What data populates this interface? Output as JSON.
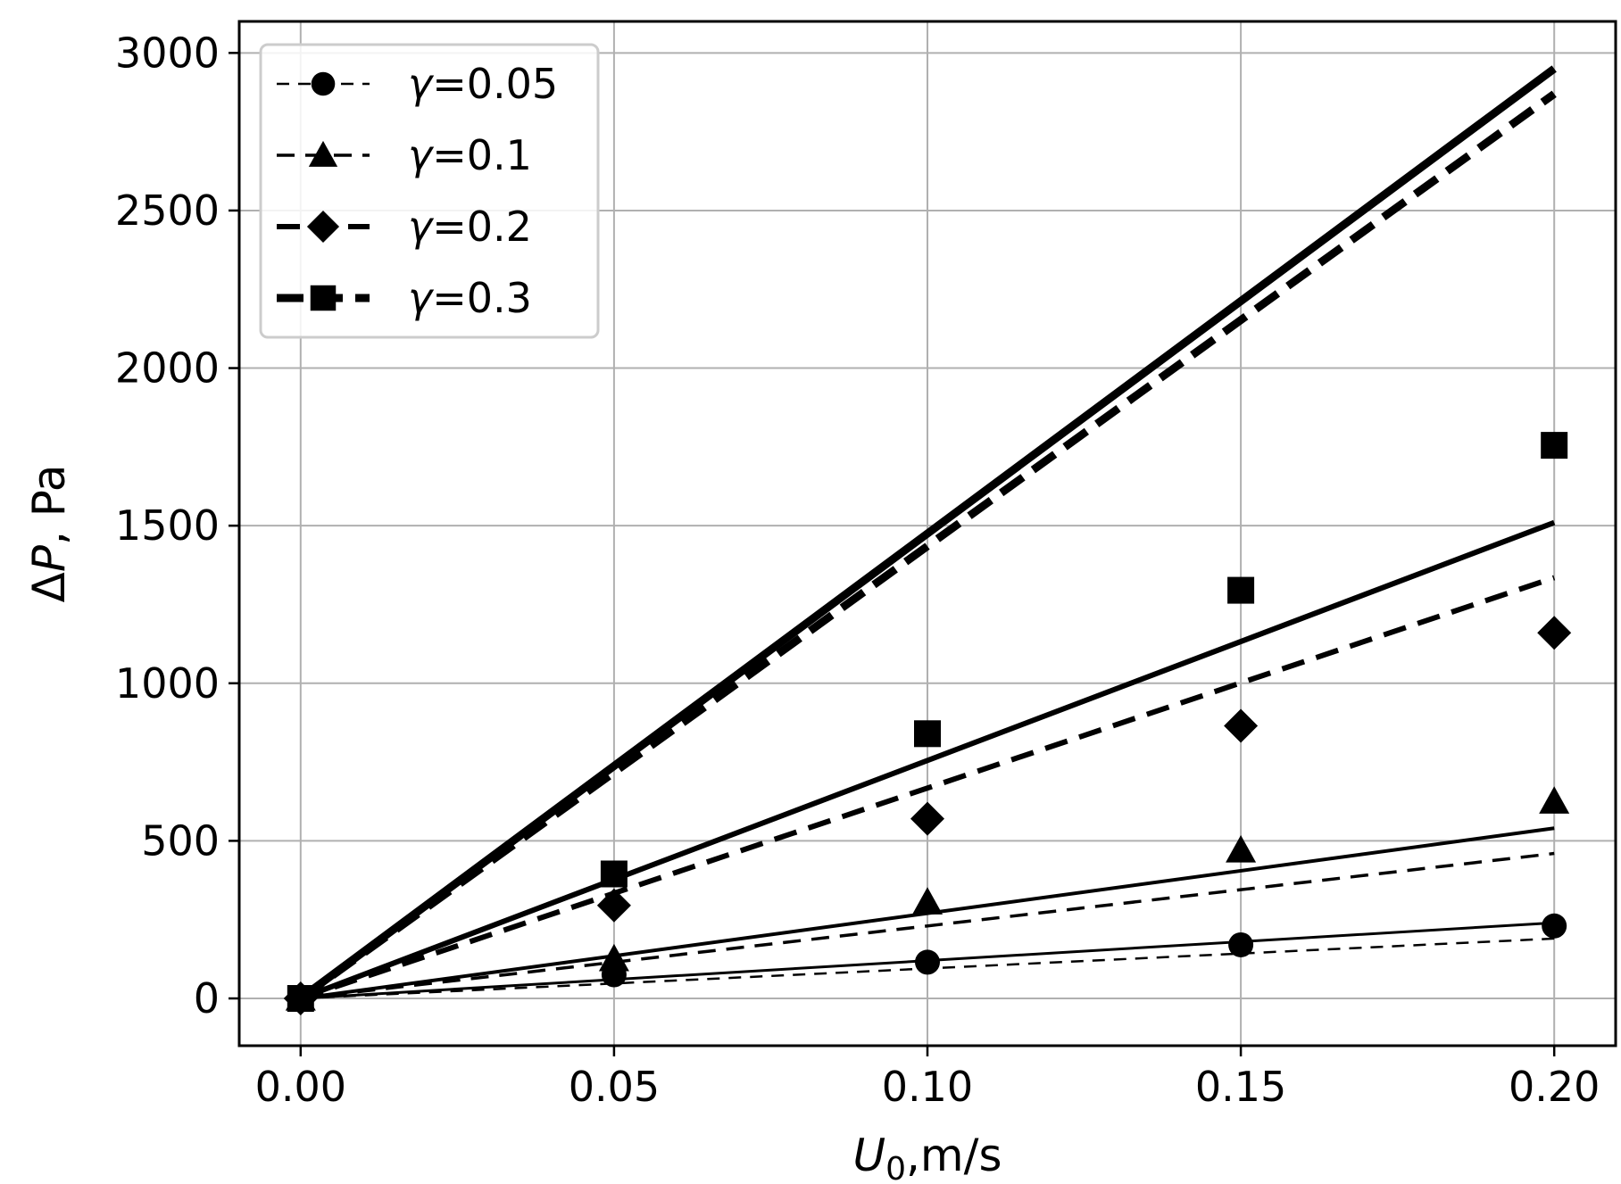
{
  "chart_data": {
    "type": "line",
    "title": "",
    "xlabel": "U_0,m/s",
    "xlabel_main": "U",
    "xlabel_sub": "0",
    "xlabel_rest": ",m/s",
    "ylabel": "ΔP, Pa",
    "ylabel_delta": "Δ",
    "ylabel_p": "P",
    "ylabel_rest": ", Pa",
    "xlim": [
      -0.0098,
      0.2098
    ],
    "ylim": [
      -150,
      3100
    ],
    "xticks": [
      0.0,
      0.05,
      0.1,
      0.15,
      0.2
    ],
    "xtick_labels": [
      "0.00",
      "0.05",
      "0.10",
      "0.15",
      "0.20"
    ],
    "yticks": [
      0,
      500,
      1000,
      1500,
      2000,
      2500,
      3000
    ],
    "ytick_labels": [
      "0",
      "500",
      "1000",
      "1500",
      "2000",
      "2500",
      "3000"
    ],
    "grid": true,
    "legend_position": "top-left",
    "x": [
      0.0,
      0.05,
      0.1,
      0.15,
      0.2
    ],
    "series": [
      {
        "name": "γ=0.05",
        "legend_symbol": "γ",
        "legend_value": "=0.05",
        "marker": "circle",
        "line_style": "dashed-thin",
        "points": [
          0,
          75,
          115,
          170,
          230
        ],
        "dashed_fit_end": 190,
        "solid_fit_end": 240
      },
      {
        "name": "γ=0.1",
        "legend_symbol": "γ",
        "legend_value": "=0.1",
        "marker": "triangle",
        "line_style": "dashed-medium",
        "points": [
          0,
          125,
          305,
          470,
          625
        ],
        "dashed_fit_end": 460,
        "solid_fit_end": 540
      },
      {
        "name": "γ=0.2",
        "legend_symbol": "γ",
        "legend_value": "=0.2",
        "marker": "diamond",
        "line_style": "dashed-thick",
        "points": [
          0,
          295,
          570,
          865,
          1160
        ],
        "dashed_fit_end": 1335,
        "solid_fit_end": 1510
      },
      {
        "name": "γ=0.3",
        "legend_symbol": "γ",
        "legend_value": "=0.3",
        "marker": "square",
        "line_style": "dashed-thickest",
        "points": [
          0,
          395,
          840,
          1295,
          1755
        ],
        "dashed_fit_end": 2870,
        "solid_fit_end": 2950
      }
    ]
  }
}
